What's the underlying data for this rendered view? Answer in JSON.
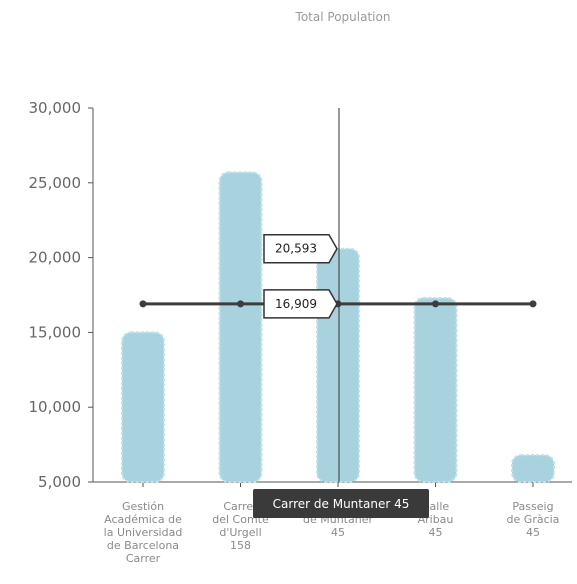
{
  "chart_data": {
    "type": "bar",
    "title": "Total Population",
    "categories": [
      [
        "Gestión",
        "Académica de",
        "la Universidad",
        "de Barcelona",
        "Carrer"
      ],
      [
        "Carrer",
        "del Comte",
        "d'Urgell",
        "158"
      ],
      [
        "Carrer",
        "de Muntaner",
        "45"
      ],
      [
        "Calle",
        "Aribau",
        "45"
      ],
      [
        "Passeig",
        "de Gràcia",
        "45"
      ]
    ],
    "series": [
      {
        "type": "bar",
        "values": [
          15000,
          25700,
          20593,
          17300,
          6800
        ]
      },
      {
        "type": "line",
        "values": [
          16909,
          16909,
          16909,
          16909,
          16909
        ]
      }
    ],
    "ylim": [
      5000,
      30000
    ],
    "yticks": [
      "5,000",
      "10,000",
      "15,000",
      "20,000",
      "25,000",
      "30,000"
    ],
    "ytick_values": [
      5000,
      10000,
      15000,
      20000,
      25000,
      30000
    ],
    "highlight": {
      "category_index": 2,
      "bar_label": "20,593",
      "line_label": "16,909",
      "tooltip": "Carrer de Muntaner 45"
    },
    "colors": {
      "bar": "#a8d3de",
      "line": "#3d3d3d",
      "tooltip_bg": "#3a3a3a",
      "axis": "#555555"
    }
  }
}
